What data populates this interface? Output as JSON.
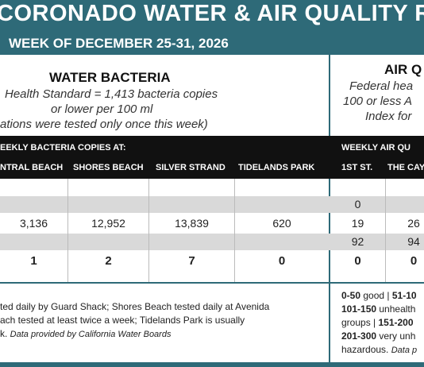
{
  "header": {
    "title": "CORONADO WATER & AIR QUALITY R",
    "subtitle": "WEEK OF DECEMBER 25-31, 2026"
  },
  "water": {
    "title": "WATER BACTERIA",
    "standard_line1": "Health Standard  = 1,413 bacteria copies",
    "standard_line2": "or lower per 100 ml",
    "standard_line3": "ations were tested only once this week)",
    "bar_label": "EEKLY BACTERIA COPIES AT:",
    "columns": [
      "NTRAL BEACH",
      "SHORES BEACH",
      "SILVER STRAND",
      "TIDELANDS PARK"
    ],
    "rows": [
      [
        "",
        "",
        "",
        ""
      ],
      [
        "",
        "",
        "",
        ""
      ],
      [
        "3,136",
        "12,952",
        "13,839",
        "620"
      ],
      [
        "",
        "",
        "",
        ""
      ],
      [
        "1",
        "2",
        "7",
        "0"
      ]
    ],
    "footnote_line1": "ted daily by Guard Shack; Shores Beach tested daily at Avenida",
    "footnote_line2": "ach tested at least twice a week; Tidelands Park is usually",
    "footnote_line3_plain": "k. ",
    "footnote_line3_italic": "Data provided by California Water Boards"
  },
  "air": {
    "title": "AIR Q",
    "standard_line1": "Federal hea",
    "standard_line2": "100 or less A",
    "standard_line3": "Index for",
    "bar_label": "WEEKLY AIR QU",
    "columns": [
      "1ST ST.",
      "THE CAY"
    ],
    "rows": [
      [
        "",
        ""
      ],
      [
        "0",
        ""
      ],
      [
        "19",
        "26"
      ],
      [
        "92",
        "94"
      ],
      [
        "0",
        "0"
      ]
    ],
    "legend_line1_a": "0-50",
    "legend_line1_b": " good | ",
    "legend_line1_c": "51-10",
    "legend_line2_a": "101-150",
    "legend_line2_b": " unhealth",
    "legend_line3_a": "groups | ",
    "legend_line3_b": "151-200",
    "legend_line4_a": "201-300",
    "legend_line4_b": " very unh",
    "legend_line5_a": "hazardous. ",
    "legend_line5_b": "Data p"
  },
  "colors": {
    "header_bg": "#2e6a78",
    "bar_bg": "#111111",
    "row_gray": "#d9d9d9"
  }
}
